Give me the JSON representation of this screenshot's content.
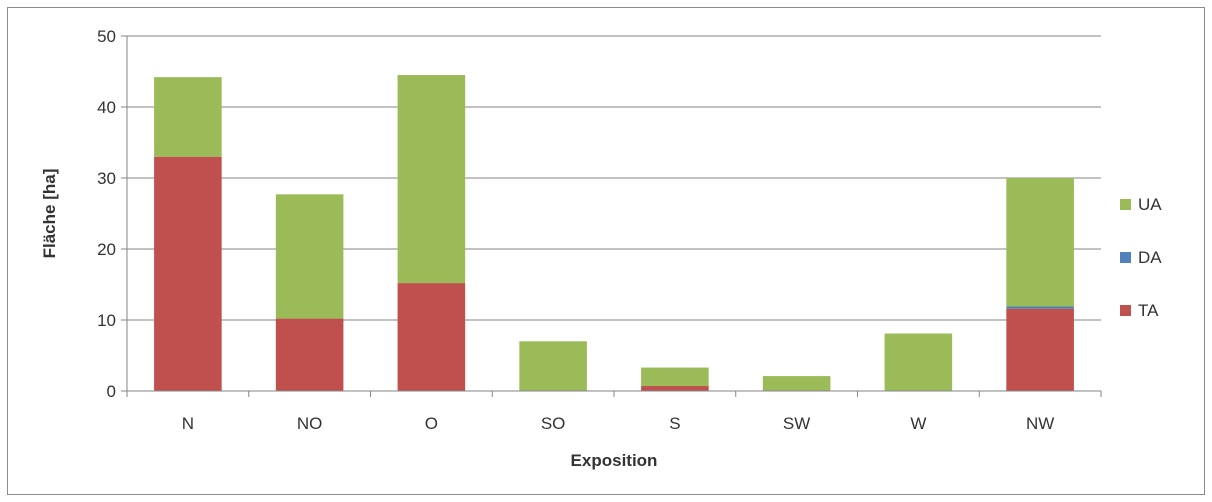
{
  "chart_data": {
    "type": "bar",
    "stacked": true,
    "categories": [
      "N",
      "NO",
      "O",
      "SO",
      "S",
      "SW",
      "W",
      "NW"
    ],
    "series": [
      {
        "name": "TA",
        "color": "#c0504d",
        "values": [
          33.0,
          10.2,
          15.2,
          0.0,
          0.7,
          0.0,
          0.0,
          11.6
        ]
      },
      {
        "name": "DA",
        "color": "#4f81bd",
        "values": [
          0.0,
          0.0,
          0.0,
          0.0,
          0.0,
          0.0,
          0.0,
          0.3
        ]
      },
      {
        "name": "UA",
        "color": "#9bbb59",
        "values": [
          11.2,
          17.5,
          29.3,
          7.0,
          2.6,
          2.1,
          8.1,
          18.1
        ]
      }
    ],
    "legend_order": [
      "UA",
      "DA",
      "TA"
    ],
    "legend_position": "right",
    "xlabel": "Exposition",
    "ylabel": "Fläche [ha]",
    "ylim": [
      0,
      50
    ],
    "yticks": [
      "0",
      "10",
      "20",
      "30",
      "40",
      "50"
    ],
    "grid": true
  }
}
